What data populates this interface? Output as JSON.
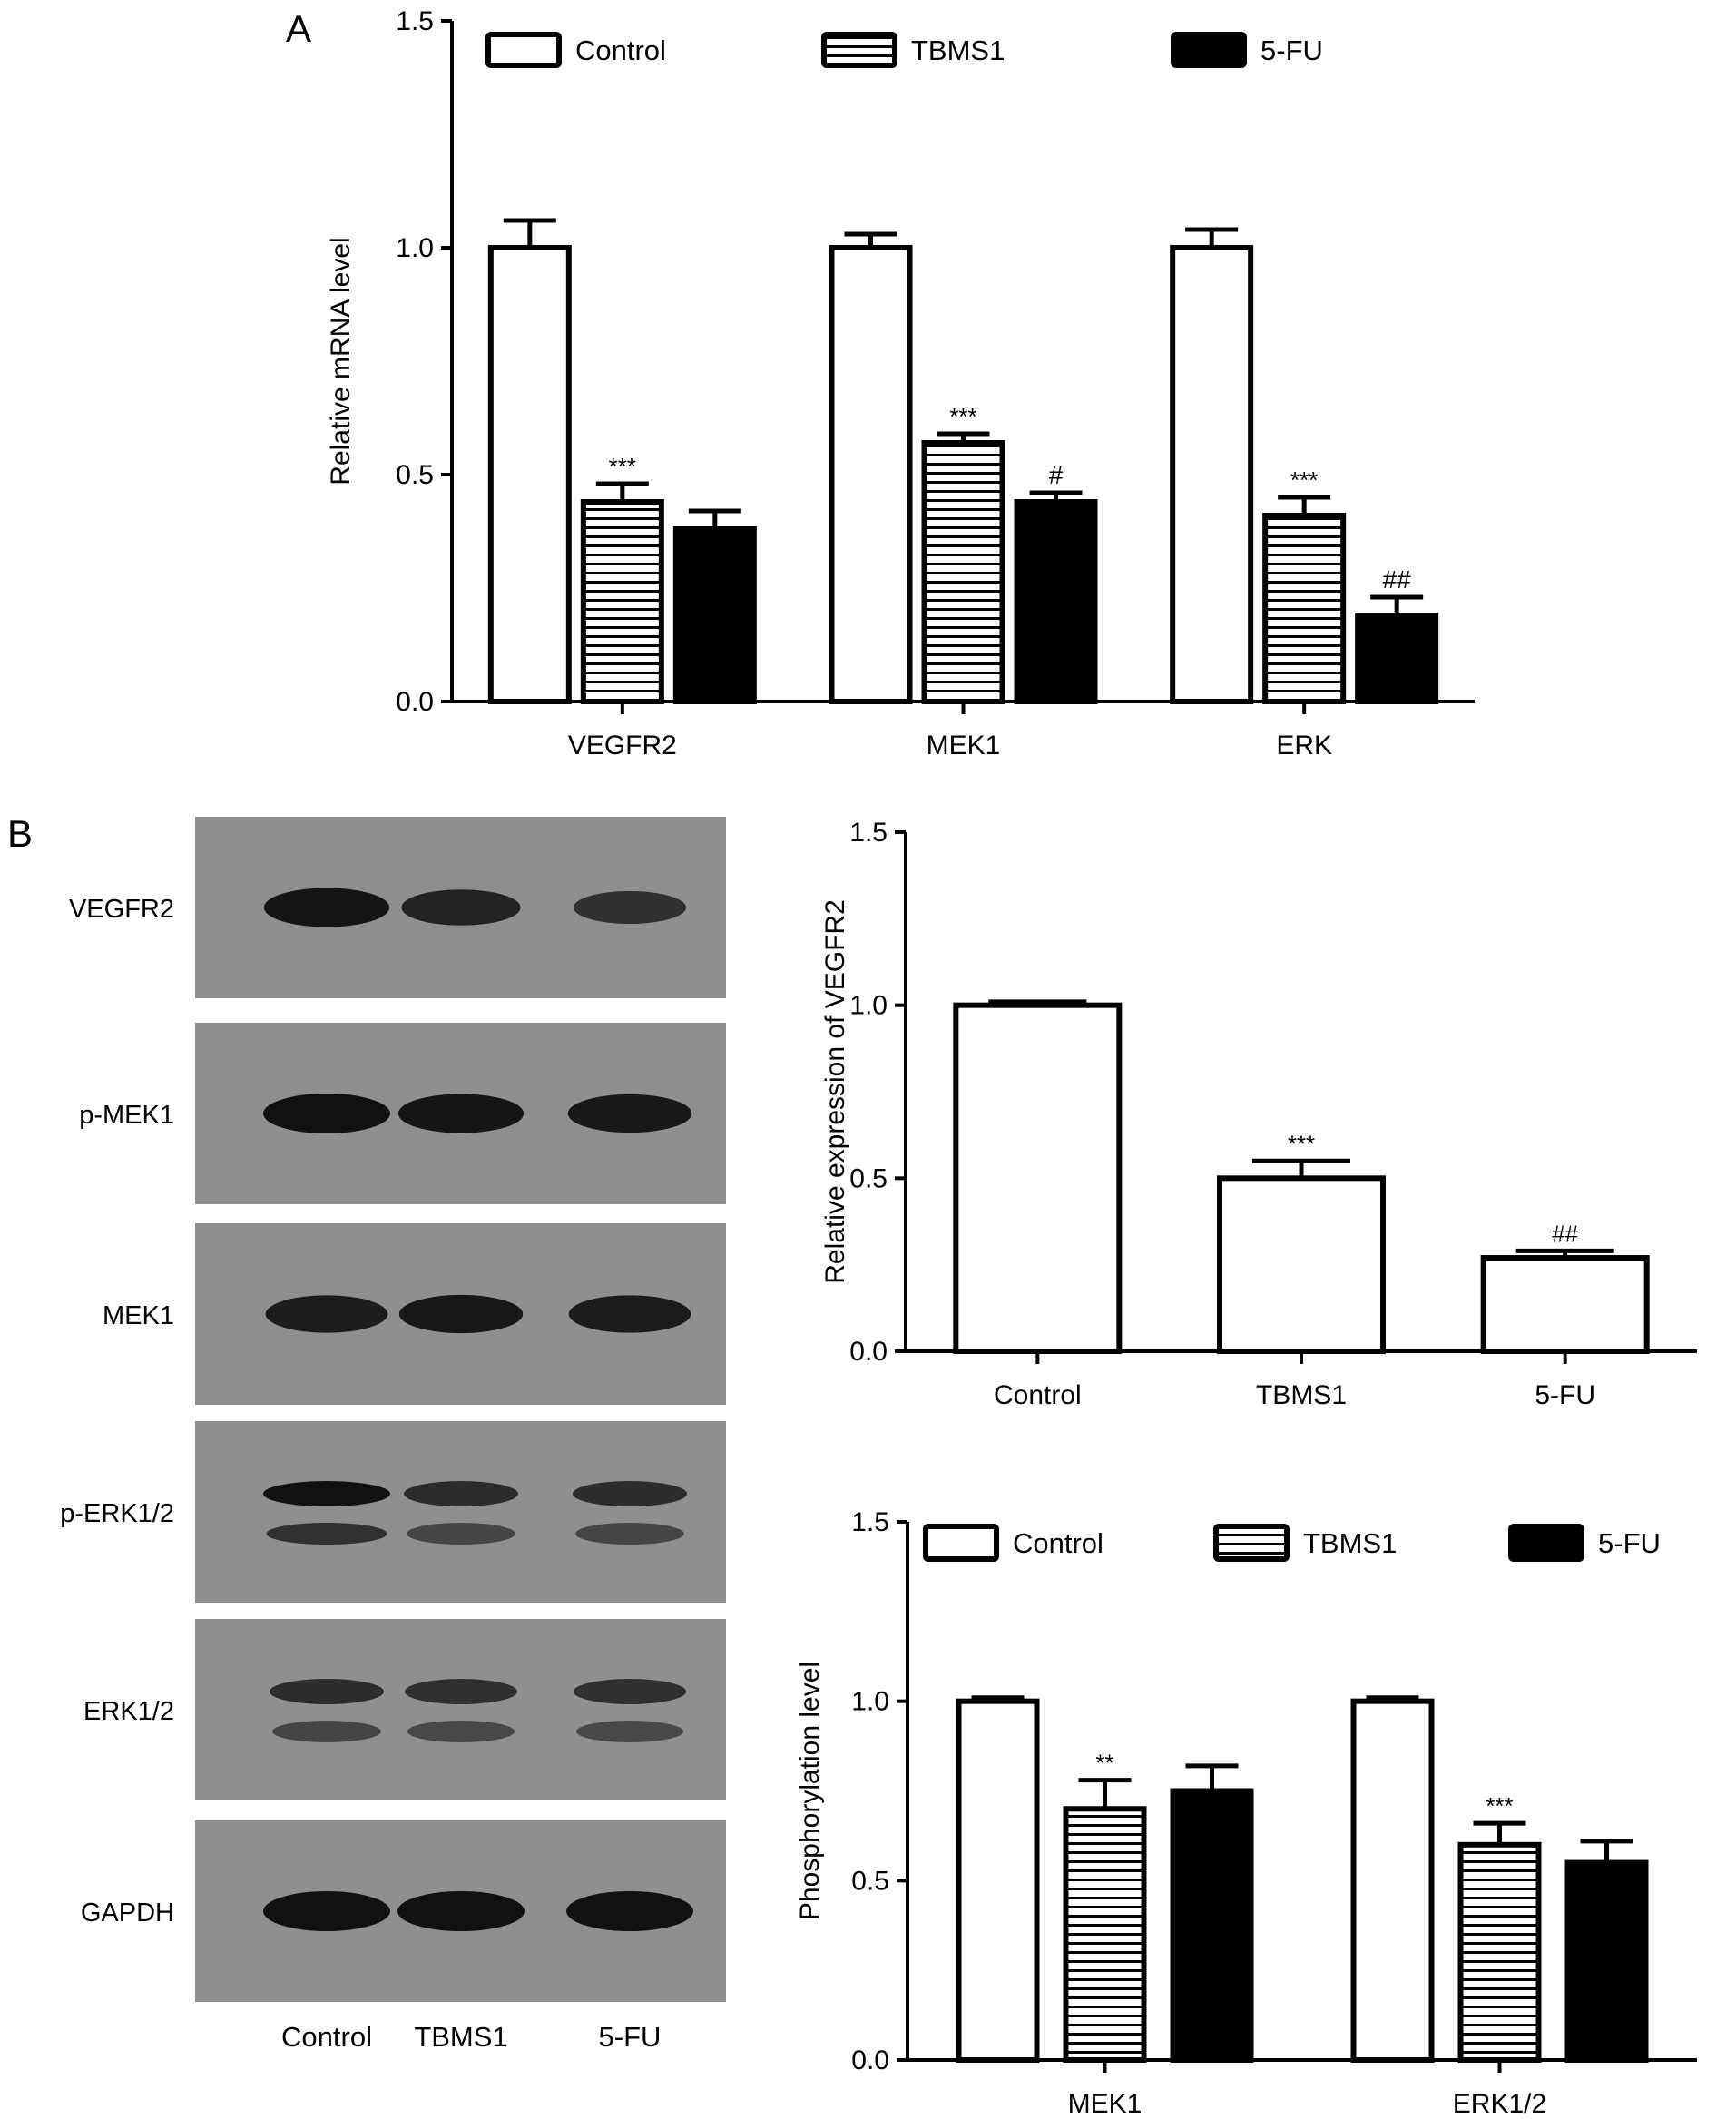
{
  "panels": {
    "a_label": "A",
    "b_label": "B"
  },
  "colors": {
    "bar_fill_control": "#ffffff",
    "bar_fill_tbms1": "#ffffff",
    "bar_fill_5fu": "#000000",
    "axis": "#000000",
    "blot_bg": "#8f8f8f",
    "band": "#111111"
  },
  "legend_items": [
    {
      "label": "Control",
      "pattern": "open"
    },
    {
      "label": "TBMS1",
      "pattern": "horizontal-stripes"
    },
    {
      "label": "5-FU",
      "pattern": "solid"
    }
  ],
  "chart_data": [
    {
      "id": "A",
      "type": "bar",
      "ylabel": "Relative mRNA level",
      "xlabel": "",
      "ylim": [
        0,
        1.5
      ],
      "yticks": [
        "0.0",
        "0.5",
        "1.0",
        "1.5"
      ],
      "categories": [
        "VEGFR2",
        "MEK1",
        "ERK"
      ],
      "series": [
        {
          "name": "Control",
          "values": [
            1.0,
            1.0,
            1.0
          ],
          "errors": [
            0.06,
            0.03,
            0.04
          ],
          "annotations": [
            "",
            "",
            ""
          ]
        },
        {
          "name": "TBMS1",
          "values": [
            0.44,
            0.57,
            0.41
          ],
          "errors": [
            0.04,
            0.02,
            0.04
          ],
          "annotations": [
            "***",
            "***",
            "***"
          ]
        },
        {
          "name": "5-FU",
          "values": [
            0.38,
            0.44,
            0.19
          ],
          "errors": [
            0.04,
            0.02,
            0.04
          ],
          "annotations": [
            "",
            "#",
            "##"
          ]
        }
      ],
      "legend": "top"
    },
    {
      "id": "B1",
      "type": "bar",
      "ylabel": "Relative expression of VEGFR2",
      "xlabel": "",
      "ylim": [
        0,
        1.5
      ],
      "yticks": [
        "0.0",
        "0.5",
        "1.0",
        "1.5"
      ],
      "categories": [
        "Control",
        "TBMS1",
        "5-FU"
      ],
      "values": [
        1.0,
        0.5,
        0.27
      ],
      "errors": [
        0.01,
        0.05,
        0.02
      ],
      "annotations": [
        "",
        "***",
        "##"
      ]
    },
    {
      "id": "B2",
      "type": "bar",
      "ylabel": "Phosphorylation level",
      "xlabel": "",
      "ylim": [
        0,
        1.5
      ],
      "yticks": [
        "0.0",
        "0.5",
        "1.0",
        "1.5"
      ],
      "categories": [
        "MEK1",
        "ERK1/2"
      ],
      "series": [
        {
          "name": "Control",
          "values": [
            1.0,
            1.0
          ],
          "errors": [
            0.01,
            0.01
          ],
          "annotations": [
            "",
            ""
          ]
        },
        {
          "name": "TBMS1",
          "values": [
            0.7,
            0.6
          ],
          "errors": [
            0.08,
            0.06
          ],
          "annotations": [
            "**",
            "***"
          ]
        },
        {
          "name": "5-FU",
          "values": [
            0.75,
            0.55
          ],
          "errors": [
            0.07,
            0.06
          ],
          "annotations": [
            "",
            ""
          ]
        }
      ],
      "legend": "top"
    }
  ],
  "western_blot": {
    "rows": [
      {
        "label": "VEGFR2",
        "bands": [
          0.95,
          0.75,
          0.55
        ],
        "double": false
      },
      {
        "label": "p-MEK1",
        "bands": [
          1.0,
          0.95,
          0.9
        ],
        "double": false
      },
      {
        "label": "MEK1",
        "bands": [
          0.85,
          0.9,
          0.85
        ],
        "double": false
      },
      {
        "label": "p-ERK1/2",
        "bands": [
          1.0,
          0.6,
          0.6
        ],
        "double": true
      },
      {
        "label": "ERK1/2",
        "bands": [
          0.6,
          0.55,
          0.55
        ],
        "double": true
      },
      {
        "label": "GAPDH",
        "bands": [
          1.0,
          1.0,
          1.0
        ],
        "double": false
      }
    ],
    "lanes": [
      "Control",
      "TBMS1",
      "5-FU"
    ]
  }
}
